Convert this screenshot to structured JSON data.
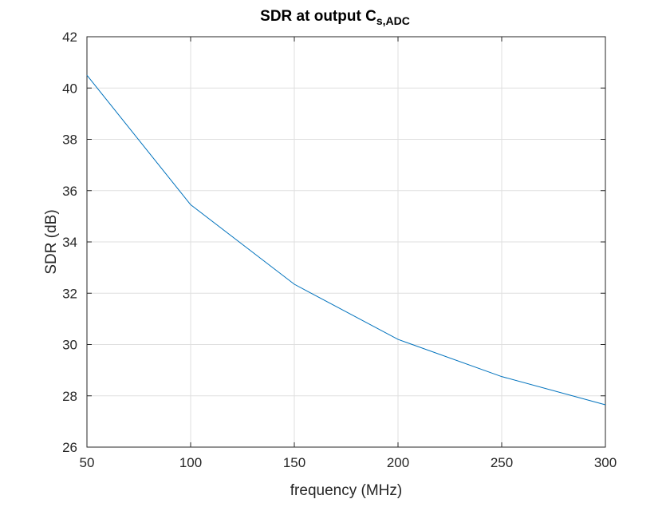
{
  "chart_data": {
    "type": "line",
    "title": "SDR at output C",
    "title_subscript": "s,ADC",
    "xlabel": "frequency (MHz)",
    "ylabel": "SDR (dB)",
    "xlim": [
      50,
      300
    ],
    "ylim": [
      26,
      42
    ],
    "xticks": [
      50,
      100,
      150,
      200,
      250,
      300
    ],
    "yticks": [
      26,
      28,
      30,
      32,
      34,
      36,
      38,
      40,
      42
    ],
    "grid": true,
    "series": [
      {
        "color": "#0072bd",
        "x": [
          50,
          100,
          150,
          200,
          250,
          300
        ],
        "y": [
          40.5,
          35.45,
          32.35,
          30.2,
          28.75,
          27.65
        ]
      }
    ]
  }
}
